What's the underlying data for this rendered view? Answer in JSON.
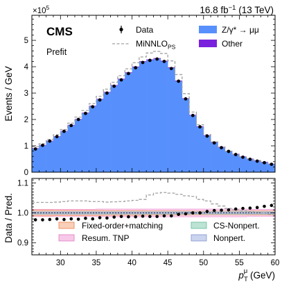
{
  "header": {
    "experiment": "CMS",
    "status": "Prefit",
    "lumi_value": "16.8 fb",
    "lumi_exp": "−1",
    "lumi_energy": " (13 TeV)"
  },
  "chart_data": [
    {
      "type": "bar",
      "panel": "main",
      "ylabel": "Events / GeV",
      "y_multiplier_base": "×10",
      "y_multiplier_exp": "5",
      "xlim": [
        26,
        60
      ],
      "ylim": [
        0,
        5.95
      ],
      "y_unit": "1e5",
      "bin_edges": [
        26,
        27,
        28,
        29,
        30,
        31,
        32,
        33,
        34,
        35,
        36,
        37,
        38,
        39,
        40,
        41,
        42,
        43,
        44,
        45,
        46,
        47,
        48,
        49,
        50,
        51,
        52,
        53,
        54,
        55,
        56,
        57,
        58,
        59,
        60
      ],
      "x_ticks": [
        "30",
        "35",
        "40",
        "45",
        "50",
        "55",
        "60"
      ],
      "y_ticks": [
        "0",
        "1",
        "2",
        "3",
        "4",
        "5"
      ],
      "legend": [
        {
          "label": "Data",
          "kind": "data"
        },
        {
          "label": "MiNNLO",
          "sub": "PS",
          "kind": "dashed",
          "color": "#a0a0a0"
        },
        {
          "label": "Z/γ* → μμ",
          "kind": "fill",
          "color": "#5790fc"
        },
        {
          "label": "Other",
          "kind": "fill",
          "color": "#7a21dd"
        }
      ],
      "series": [
        {
          "name": "Z/γ* → μμ",
          "values": [
            0.9,
            1.02,
            1.18,
            1.35,
            1.55,
            1.78,
            2.0,
            2.24,
            2.5,
            2.76,
            3.02,
            3.28,
            3.52,
            3.76,
            3.98,
            4.18,
            4.25,
            4.3,
            4.2,
            3.95,
            3.45,
            2.78,
            2.15,
            1.72,
            1.38,
            1.12,
            0.94,
            0.79,
            0.68,
            0.58,
            0.5,
            0.44,
            0.38,
            0.31
          ]
        },
        {
          "name": "Other",
          "values": [
            0.012,
            0.013,
            0.014,
            0.015,
            0.016,
            0.017,
            0.018,
            0.019,
            0.02,
            0.021,
            0.022,
            0.023,
            0.024,
            0.025,
            0.026,
            0.027,
            0.027,
            0.027,
            0.027,
            0.026,
            0.025,
            0.024,
            0.023,
            0.022,
            0.021,
            0.02,
            0.019,
            0.018,
            0.017,
            0.016,
            0.015,
            0.014,
            0.013,
            0.012
          ]
        },
        {
          "name": "MiNNLO",
          "values": [
            0.97,
            1.08,
            1.24,
            1.42,
            1.62,
            1.86,
            2.09,
            2.34,
            2.6,
            2.88,
            3.15,
            3.41,
            3.66,
            3.92,
            4.15,
            4.37,
            4.52,
            4.58,
            4.5,
            4.22,
            3.7,
            2.98,
            2.28,
            1.8,
            1.43,
            1.15,
            0.96,
            0.8,
            0.68,
            0.58,
            0.5,
            0.43,
            0.37,
            0.3
          ]
        },
        {
          "name": "Data",
          "values": [
            0.88,
            1.02,
            1.18,
            1.35,
            1.55,
            1.77,
            2.0,
            2.23,
            2.48,
            2.74,
            3.0,
            3.26,
            3.5,
            3.74,
            3.96,
            4.16,
            4.24,
            4.29,
            4.2,
            3.93,
            3.45,
            2.78,
            2.15,
            1.72,
            1.37,
            1.11,
            0.93,
            0.79,
            0.67,
            0.57,
            0.49,
            0.42,
            0.36,
            0.3
          ]
        }
      ]
    },
    {
      "type": "line",
      "panel": "ratio",
      "xlabel_main": "p",
      "xlabel_sub": "T",
      "xlabel_sup": "μ",
      "xlabel_unit": " (GeV)",
      "ylabel": "Data / Pred.",
      "xlim": [
        26,
        60
      ],
      "ylim": [
        0.86,
        1.115
      ],
      "x_ticks": [
        "30",
        "35",
        "40",
        "45",
        "50",
        "55",
        "60"
      ],
      "y_ticks": [
        "0.9",
        "1.0",
        "1.1"
      ],
      "reference_line": 1.0,
      "legend": [
        {
          "label": "Fixed-order+matching",
          "color": "#f4a77f"
        },
        {
          "label": "CS-Nonpert.",
          "color": "#8fd0b8"
        },
        {
          "label": "Resum. TNP",
          "color": "#f3a3d8"
        },
        {
          "label": "Nonpert.",
          "color": "#a9b7e3"
        }
      ],
      "bands": [
        {
          "name": "Resum. TNP",
          "color": "#f3a3d8",
          "half_width": [
            0.012,
            0.012,
            0.012,
            0.012,
            0.012,
            0.012,
            0.012,
            0.012,
            0.012,
            0.013,
            0.013,
            0.013,
            0.013,
            0.013,
            0.013,
            0.013,
            0.013,
            0.013,
            0.013,
            0.013,
            0.013,
            0.013,
            0.013,
            0.013,
            0.013,
            0.013,
            0.013,
            0.013,
            0.013,
            0.013,
            0.012,
            0.012,
            0.012,
            0.012
          ]
        },
        {
          "name": "Fixed-order+matching",
          "color": "#f4a77f",
          "half_width": [
            0.01,
            0.01,
            0.01,
            0.009,
            0.009,
            0.009,
            0.009,
            0.009,
            0.009,
            0.009,
            0.008,
            0.008,
            0.008,
            0.008,
            0.008,
            0.008,
            0.007,
            0.007,
            0.007,
            0.007,
            0.007,
            0.007,
            0.006,
            0.006,
            0.006,
            0.006,
            0.006,
            0.006,
            0.006,
            0.006,
            0.007,
            0.007,
            0.007,
            0.007
          ]
        },
        {
          "name": "CS-Nonpert.",
          "color": "#8fd0b8",
          "half_width": [
            0.004,
            0.004,
            0.004,
            0.004,
            0.004,
            0.004,
            0.004,
            0.004,
            0.004,
            0.004,
            0.004,
            0.004,
            0.004,
            0.004,
            0.004,
            0.004,
            0.004,
            0.004,
            0.004,
            0.004,
            0.004,
            0.004,
            0.004,
            0.004,
            0.004,
            0.004,
            0.004,
            0.004,
            0.004,
            0.004,
            0.004,
            0.004,
            0.004,
            0.004
          ]
        },
        {
          "name": "Nonpert.",
          "color": "#a9b7e3",
          "half_width": [
            0.003,
            0.003,
            0.003,
            0.003,
            0.003,
            0.003,
            0.003,
            0.003,
            0.003,
            0.003,
            0.003,
            0.003,
            0.003,
            0.003,
            0.003,
            0.003,
            0.003,
            0.003,
            0.003,
            0.003,
            0.003,
            0.003,
            0.003,
            0.003,
            0.003,
            0.003,
            0.003,
            0.003,
            0.003,
            0.003,
            0.003,
            0.003,
            0.003,
            0.003
          ]
        }
      ],
      "series": [
        {
          "name": "MiNNLO",
          "values": [
            1.035,
            1.035,
            1.035,
            1.036,
            1.038,
            1.04,
            1.04,
            1.04,
            1.038,
            1.038,
            1.036,
            1.037,
            1.038,
            1.04,
            1.042,
            1.045,
            1.06,
            1.066,
            1.068,
            1.066,
            1.062,
            1.057,
            1.055,
            1.045,
            1.04,
            1.03,
            1.023,
            1.015,
            1.01,
            1.007,
            1.005,
            1.002,
            1.0,
            0.995
          ]
        },
        {
          "name": "Data",
          "values": [
            0.977,
            0.977,
            0.978,
            0.98,
            0.978,
            0.98,
            0.979,
            0.982,
            0.98,
            0.984,
            0.983,
            0.986,
            0.988,
            0.987,
            0.987,
            0.989,
            0.988,
            0.988,
            0.99,
            0.99,
            0.995,
            0.997,
            1.0,
            1.0,
            1.005,
            1.008,
            1.009,
            1.01,
            1.013,
            1.015,
            1.016,
            1.018,
            1.022,
            1.025
          ]
        }
      ]
    }
  ]
}
